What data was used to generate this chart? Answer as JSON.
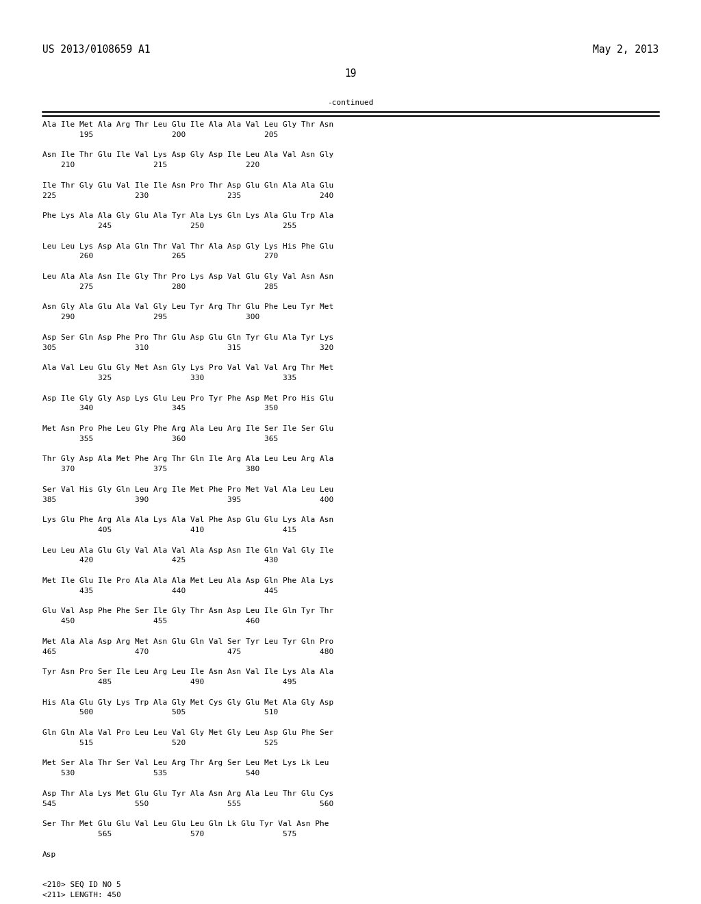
{
  "header_left": "US 2013/0108659 A1",
  "header_right": "May 2, 2013",
  "page_number": "19",
  "continued_label": "-continued",
  "background_color": "#ffffff",
  "text_color": "#000000",
  "lines": [
    "Ala Ile Met Ala Arg Thr Leu Glu Ile Ala Ala Val Leu Gly Thr Asn",
    "        195                 200                 205",
    "",
    "Asn Ile Thr Glu Ile Val Lys Asp Gly Asp Ile Leu Ala Val Asn Gly",
    "    210                 215                 220",
    "",
    "Ile Thr Gly Glu Val Ile Ile Asn Pro Thr Asp Glu Gln Ala Ala Glu",
    "225                 230                 235                 240",
    "",
    "Phe Lys Ala Ala Gly Glu Ala Tyr Ala Lys Gln Lys Ala Glu Trp Ala",
    "            245                 250                 255",
    "",
    "Leu Leu Lys Asp Ala Gln Thr Val Thr Ala Asp Gly Lys His Phe Glu",
    "        260                 265                 270",
    "",
    "Leu Ala Ala Asn Ile Gly Thr Pro Lys Asp Val Glu Gly Val Asn Asn",
    "        275                 280                 285",
    "",
    "Asn Gly Ala Glu Ala Val Gly Leu Tyr Arg Thr Glu Phe Leu Tyr Met",
    "    290                 295                 300",
    "",
    "Asp Ser Gln Asp Phe Pro Thr Glu Asp Glu Gln Tyr Glu Ala Tyr Lys",
    "305                 310                 315                 320",
    "",
    "Ala Val Leu Glu Gly Met Asn Gly Lys Pro Val Val Val Arg Thr Met",
    "            325                 330                 335",
    "",
    "Asp Ile Gly Gly Asp Lys Glu Leu Pro Tyr Phe Asp Met Pro His Glu",
    "        340                 345                 350",
    "",
    "Met Asn Pro Phe Leu Gly Phe Arg Ala Leu Arg Ile Ser Ile Ser Glu",
    "        355                 360                 365",
    "",
    "Thr Gly Asp Ala Met Phe Arg Thr Gln Ile Arg Ala Leu Leu Arg Ala",
    "    370                 375                 380",
    "",
    "Ser Val His Gly Gln Leu Arg Ile Met Phe Pro Met Val Ala Leu Leu",
    "385                 390                 395                 400",
    "",
    "Lys Glu Phe Arg Ala Ala Lys Ala Val Phe Asp Glu Glu Lys Ala Asn",
    "            405                 410                 415",
    "",
    "Leu Leu Ala Glu Gly Val Ala Val Ala Asp Asn Ile Gln Val Gly Ile",
    "        420                 425                 430",
    "",
    "Met Ile Glu Ile Pro Ala Ala Ala Met Leu Ala Asp Gln Phe Ala Lys",
    "        435                 440                 445",
    "",
    "Glu Val Asp Phe Phe Ser Ile Gly Thr Asn Asp Leu Ile Gln Tyr Thr",
    "    450                 455                 460",
    "",
    "Met Ala Ala Asp Arg Met Asn Glu Gln Val Ser Tyr Leu Tyr Gln Pro",
    "465                 470                 475                 480",
    "",
    "Tyr Asn Pro Ser Ile Leu Arg Leu Ile Asn Asn Val Ile Lys Ala Ala",
    "            485                 490                 495",
    "",
    "His Ala Glu Gly Lys Trp Ala Gly Met Cys Gly Glu Met Ala Gly Asp",
    "        500                 505                 510",
    "",
    "Gln Gln Ala Val Pro Leu Leu Val Gly Met Gly Leu Asp Glu Phe Ser",
    "        515                 520                 525",
    "",
    "Met Ser Ala Thr Ser Val Leu Arg Thr Arg Ser Leu Met Lys Lk Leu",
    "    530                 535                 540",
    "",
    "Asp Thr Ala Lys Met Glu Glu Tyr Ala Asn Arg Ala Leu Thr Glu Cys",
    "545                 550                 555                 560",
    "",
    "Ser Thr Met Glu Glu Val Leu Glu Leu Gln Lk Glu Tyr Val Asn Phe",
    "            565                 570                 575",
    "",
    "Asp",
    "",
    "",
    "<210> SEQ ID NO 5",
    "<211> LENGTH: 450"
  ]
}
